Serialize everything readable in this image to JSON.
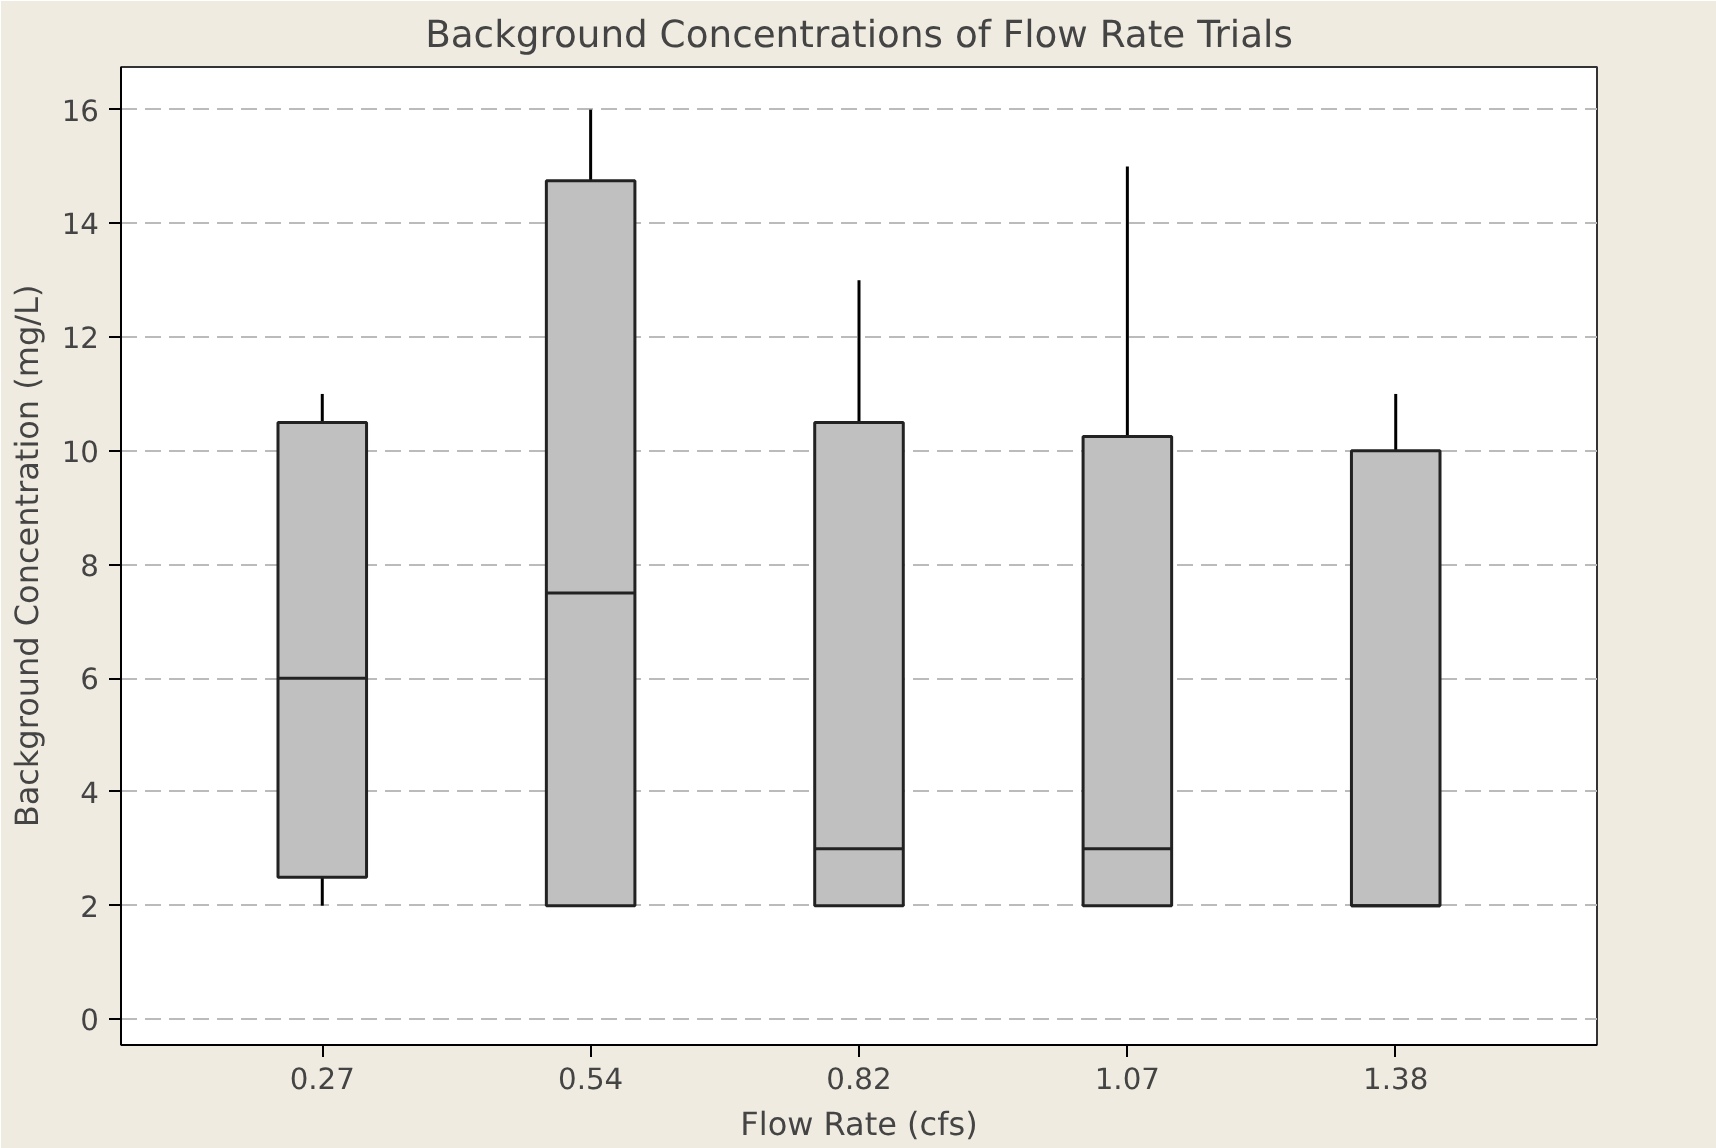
{
  "chart_data": {
    "type": "box",
    "title": "Background Concentrations of Flow Rate Trials",
    "xlabel": "Flow Rate (cfs)",
    "ylabel": "Background Concentration (mg/L)",
    "categories": [
      "0.27",
      "0.54",
      "0.82",
      "1.07",
      "1.38"
    ],
    "boxes": [
      {
        "low": 2,
        "q1": 2.5,
        "median": 6,
        "q3": 10.5,
        "high": 11
      },
      {
        "low": 2,
        "q1": 2,
        "median": 7.5,
        "q3": 14.75,
        "high": 16
      },
      {
        "low": 2,
        "q1": 2,
        "median": 3,
        "q3": 10.5,
        "high": 13
      },
      {
        "low": 2,
        "q1": 2,
        "median": 3,
        "q3": 10.25,
        "high": 15
      },
      {
        "low": 2,
        "q1": 2,
        "median": 2,
        "q3": 10,
        "high": 11
      }
    ],
    "color": "#c0c0c0",
    "ylim": [
      -0.45,
      16.75
    ],
    "yticks": [
      0,
      2,
      4,
      6,
      8,
      10,
      12,
      14,
      16
    ],
    "grid": "y"
  }
}
